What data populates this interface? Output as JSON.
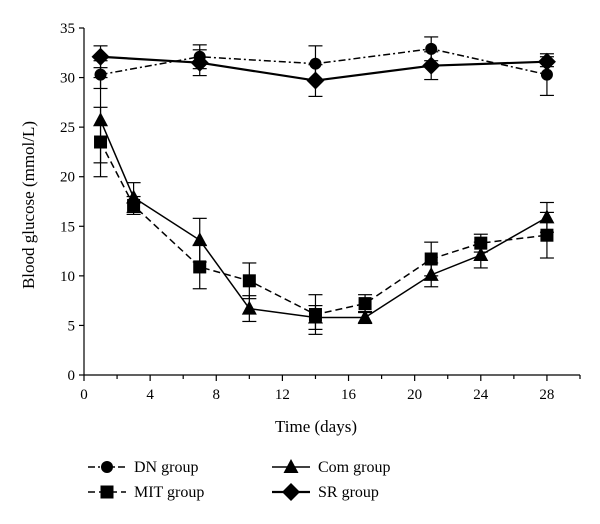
{
  "chart_data": {
    "type": "line",
    "title": "",
    "xlabel": "Time (days)",
    "ylabel": "Blood glucose (mmol/L)",
    "xlim": [
      0,
      30
    ],
    "ylim": [
      0,
      35
    ],
    "xticks": [
      0,
      4,
      8,
      12,
      16,
      20,
      24,
      28
    ],
    "yticks": [
      0,
      5,
      10,
      15,
      20,
      25,
      30,
      35
    ],
    "xtick_labels": [
      "0",
      "4",
      "8",
      "12",
      "16",
      "20",
      "24",
      "28"
    ],
    "ytick_labels": [
      "0",
      "5",
      "10",
      "15",
      "20",
      "25",
      "30",
      "35"
    ],
    "grid": false,
    "legend_position": "bottom",
    "series": [
      {
        "name": "DN group",
        "marker": "circle",
        "line_style": "dashdot",
        "points": [
          {
            "x": 1,
            "y": 30.3,
            "err": 1.4
          },
          {
            "x": 7,
            "y": 32.1,
            "err": 1.2
          },
          {
            "x": 14,
            "y": 31.4,
            "err": 1.8
          },
          {
            "x": 21,
            "y": 32.9,
            "err": 1.2
          },
          {
            "x": 28,
            "y": 30.3,
            "err": 2.1
          }
        ]
      },
      {
        "name": "SR group",
        "marker": "diamond",
        "line_style": "solid",
        "points": [
          {
            "x": 1,
            "y": 32.1,
            "err": 1.1
          },
          {
            "x": 7,
            "y": 31.5,
            "err": 1.3
          },
          {
            "x": 14,
            "y": 29.7,
            "err": 1.6
          },
          {
            "x": 21,
            "y": 31.2,
            "err": 1.4
          },
          {
            "x": 28,
            "y": 31.6,
            "err": 0.5
          }
        ]
      },
      {
        "name": "Com group",
        "marker": "triangle",
        "line_style": "solid",
        "points": [
          {
            "x": 1,
            "y": 25.7,
            "err": 4.3
          },
          {
            "x": 3,
            "y": 17.9,
            "err": 1.5
          },
          {
            "x": 7,
            "y": 13.6,
            "err": 2.2
          },
          {
            "x": 10,
            "y": 6.7,
            "err": 1.3
          },
          {
            "x": 14,
            "y": 5.8,
            "err": 1.2
          },
          {
            "x": 17,
            "y": 5.8,
            "err": 0.6
          },
          {
            "x": 21,
            "y": 10.1,
            "err": 1.2
          },
          {
            "x": 24,
            "y": 12.1,
            "err": 1.3
          },
          {
            "x": 28,
            "y": 15.9,
            "err": 1.5
          }
        ]
      },
      {
        "name": "MIT group",
        "marker": "square",
        "line_style": "dashed",
        "points": [
          {
            "x": 1,
            "y": 23.5,
            "err": 3.5
          },
          {
            "x": 3,
            "y": 17.1,
            "err": 0.9
          },
          {
            "x": 7,
            "y": 10.9,
            "err": 2.2
          },
          {
            "x": 10,
            "y": 9.5,
            "err": 1.8
          },
          {
            "x": 14,
            "y": 6.1,
            "err": 2.0
          },
          {
            "x": 17,
            "y": 7.2,
            "err": 0.9
          },
          {
            "x": 21,
            "y": 11.7,
            "err": 1.7
          },
          {
            "x": 24,
            "y": 13.3,
            "err": 0.9
          },
          {
            "x": 28,
            "y": 14.1,
            "err": 2.3
          }
        ]
      }
    ],
    "legend": [
      {
        "label": "DN group",
        "marker": "circle",
        "line_style": "dashdot"
      },
      {
        "label": "Com group",
        "marker": "triangle",
        "line_style": "solid"
      },
      {
        "label": "MIT group",
        "marker": "square",
        "line_style": "dashed"
      },
      {
        "label": "SR group",
        "marker": "diamond",
        "line_style": "solid"
      }
    ]
  }
}
